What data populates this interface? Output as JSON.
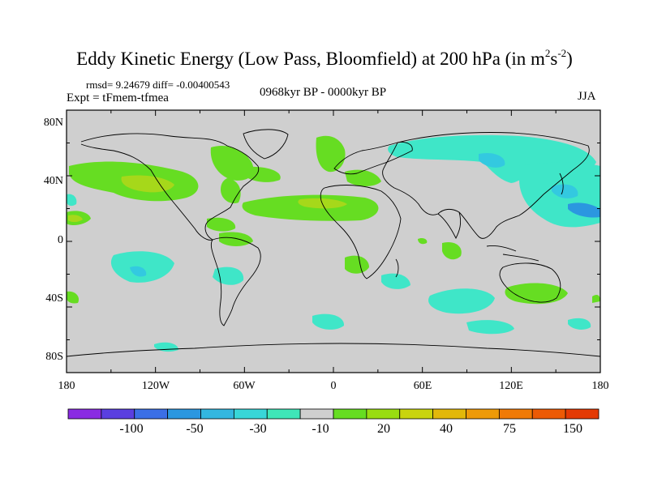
{
  "header": {
    "title_main": "Eddy Kinetic Energy (Low Pass, Bloomfield) at 200 hPa (in m",
    "title_sup1": "2",
    "title_mid": "s",
    "title_sup2": "-2",
    "title_end": ")",
    "stats": "rmsd= 9.24679 diff= -0.00400543",
    "experiment": "Expt = tFmem-tfmea",
    "period": "0968kyr BP - 0000kyr BP",
    "season": "JJA"
  },
  "axes": {
    "lat_ticks": [
      "80N",
      "40N",
      "0",
      "40S",
      "80S"
    ],
    "lon_ticks": [
      "180",
      "120W",
      "60W",
      "0",
      "60E",
      "120E",
      "180"
    ]
  },
  "colorbar": {
    "labels": [
      "-100",
      "-50",
      "-30",
      "-10",
      "20",
      "40",
      "75",
      "150"
    ],
    "colors": [
      "#8a2be2",
      "#5a3fe0",
      "#3b6fe6",
      "#2b97e0",
      "#33b7e0",
      "#38d6d8",
      "#3fe6b8",
      "#cfcfcf",
      "#66dd22",
      "#99dd11",
      "#c9d40e",
      "#e2b80a",
      "#ee9a08",
      "#f07a06",
      "#ec5a05",
      "#e43a04"
    ]
  },
  "map_colors": {
    "background": "#cfcfcf",
    "pos_light": "#66dd22",
    "pos_mid": "#a6d81a",
    "pos_strong": "#c9d40e",
    "neg_light": "#3fe6c8",
    "neg_mid": "#33c9e0",
    "neg_strong": "#2b97e0"
  }
}
